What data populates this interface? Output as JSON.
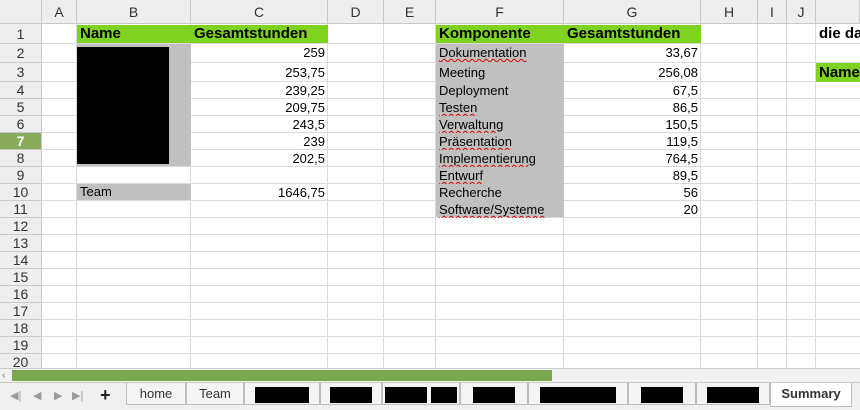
{
  "columns": [
    "A",
    "B",
    "C",
    "D",
    "E",
    "F",
    "G",
    "H",
    "I",
    "J"
  ],
  "rows": [
    "1",
    "2",
    "3",
    "4",
    "5",
    "6",
    "7",
    "8",
    "9",
    "10",
    "11",
    "12",
    "13",
    "14",
    "15",
    "16",
    "17",
    "18",
    "19",
    "20"
  ],
  "selected_row": "7",
  "table1": {
    "header_name": "Name",
    "header_hours": "Gesamtstunden",
    "hours": [
      "259",
      "253,75",
      "239,25",
      "209,75",
      "243,5",
      "239",
      "202,5"
    ],
    "team_label": "Team",
    "team_total": "1646,75"
  },
  "table2": {
    "header_component": "Komponente",
    "header_hours": "Gesamtstunden",
    "rows": [
      {
        "label": "Dokumentation",
        "value": "33,67"
      },
      {
        "label": "Meeting",
        "value": "256,08"
      },
      {
        "label": "Deployment",
        "value": "67,5"
      },
      {
        "label": "Testen",
        "value": "86,5"
      },
      {
        "label": "Verwaltung",
        "value": "150,5"
      },
      {
        "label": "Präsentation",
        "value": "119,5"
      },
      {
        "label": "Implementierung",
        "value": "764,5"
      },
      {
        "label": "Entwurf",
        "value": "89,5"
      },
      {
        "label": "Recherche",
        "value": "56"
      },
      {
        "label": "Software/Systeme",
        "value": "20"
      }
    ]
  },
  "offscreen": {
    "k1": "die da",
    "k3": "Name"
  },
  "tabs": {
    "home": "home",
    "team": "Team",
    "summary": "Summary"
  },
  "colors": {
    "header_green": "#7ed321",
    "label_gray": "#c0c0c0",
    "selection_green": "#8aab5c"
  }
}
